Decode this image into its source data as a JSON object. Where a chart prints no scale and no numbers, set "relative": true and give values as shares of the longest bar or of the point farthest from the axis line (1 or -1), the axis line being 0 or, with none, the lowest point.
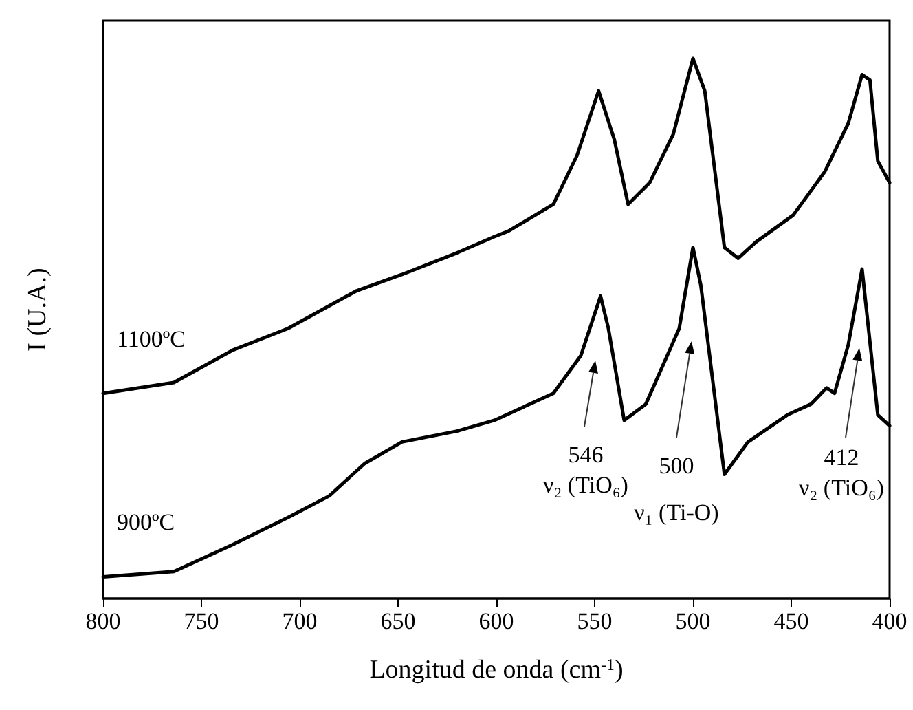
{
  "chart_data": {
    "type": "line",
    "xlabel": "Longitud de onda (cm$^{-1}$)",
    "ylabel": "I (U.A.)",
    "relative": true,
    "xlim": [
      800,
      400
    ],
    "xticks": [
      800,
      750,
      700,
      650,
      600,
      550,
      500,
      450,
      400
    ],
    "grid": false,
    "legend": false,
    "marker": "none",
    "line_style": "solid",
    "series": [
      {
        "name": "1100ºC",
        "color": "#000000",
        "x": [
          800,
          764,
          734,
          706,
          671,
          648,
          620,
          601,
          594,
          571,
          559,
          548,
          540,
          533,
          522,
          510,
          500,
          494,
          484,
          477,
          468,
          449,
          433,
          421,
          414,
          410,
          406,
          400
        ],
        "values": [
          0.38,
          0.4,
          0.46,
          0.5,
          0.57,
          0.6,
          0.64,
          0.67,
          0.68,
          0.73,
          0.82,
          0.94,
          0.85,
          0.73,
          0.77,
          0.86,
          1.0,
          0.94,
          0.65,
          0.63,
          0.66,
          0.71,
          0.79,
          0.88,
          0.97,
          0.96,
          0.81,
          0.77
        ]
      },
      {
        "name": "900ºC",
        "color": "#000000",
        "x": [
          800,
          764,
          734,
          706,
          685,
          667,
          648,
          620,
          601,
          571,
          557,
          547,
          543,
          535,
          524,
          507,
          500,
          496,
          484,
          472,
          452,
          440,
          432,
          428,
          421,
          414,
          406,
          400
        ],
        "values": [
          0.04,
          0.05,
          0.1,
          0.15,
          0.19,
          0.25,
          0.29,
          0.31,
          0.33,
          0.38,
          0.45,
          0.56,
          0.5,
          0.33,
          0.36,
          0.5,
          0.65,
          0.58,
          0.23,
          0.29,
          0.34,
          0.36,
          0.39,
          0.38,
          0.47,
          0.61,
          0.34,
          0.32
        ]
      }
    ],
    "annotations": [
      "546\nν₂ (TiO₆)",
      "500\nν₁ (Ti-O)",
      "412\nν₂ (TiO₆)"
    ]
  }
}
